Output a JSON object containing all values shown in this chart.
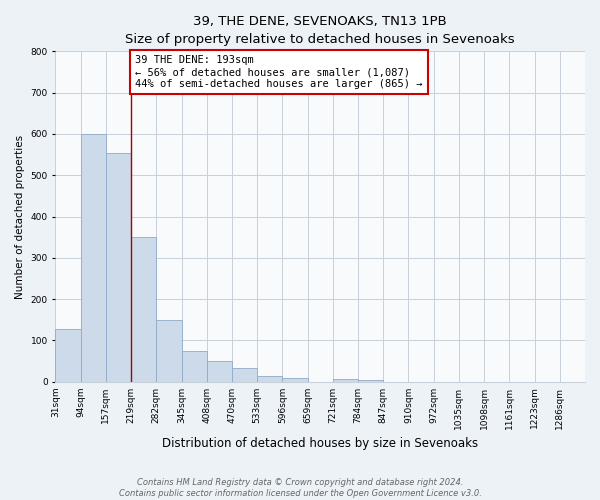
{
  "title": "39, THE DENE, SEVENOAKS, TN13 1PB",
  "subtitle": "Size of property relative to detached houses in Sevenoaks",
  "xlabel": "Distribution of detached houses by size in Sevenoaks",
  "ylabel": "Number of detached properties",
  "bar_labels": [
    "31sqm",
    "94sqm",
    "157sqm",
    "219sqm",
    "282sqm",
    "345sqm",
    "408sqm",
    "470sqm",
    "533sqm",
    "596sqm",
    "659sqm",
    "721sqm",
    "784sqm",
    "847sqm",
    "910sqm",
    "972sqm",
    "1035sqm",
    "1098sqm",
    "1161sqm",
    "1223sqm",
    "1286sqm"
  ],
  "bar_values": [
    128,
    600,
    555,
    350,
    150,
    75,
    50,
    33,
    13,
    10,
    0,
    7,
    5,
    0,
    0,
    0,
    0,
    0,
    0,
    0,
    0
  ],
  "bar_color": "#cddaea",
  "bar_edgecolor": "#90aac8",
  "ylim": [
    0,
    800
  ],
  "yticks": [
    0,
    100,
    200,
    300,
    400,
    500,
    600,
    700,
    800
  ],
  "property_line_x": 3.0,
  "property_line_color": "#aa0000",
  "annotation_text": "39 THE DENE: 193sqm\n← 56% of detached houses are smaller (1,087)\n44% of semi-detached houses are larger (865) →",
  "annotation_box_edgecolor": "#cc0000",
  "annotation_box_facecolor": "#ffffff",
  "footer_line1": "Contains HM Land Registry data © Crown copyright and database right 2024.",
  "footer_line2": "Contains public sector information licensed under the Open Government Licence v3.0.",
  "background_color": "#edf2f7",
  "plot_bg_color": "#f8fafc",
  "grid_color": "#c8d0da",
  "title_fontsize": 9.5,
  "subtitle_fontsize": 8.5,
  "xlabel_fontsize": 8.5,
  "ylabel_fontsize": 7.5,
  "tick_fontsize": 6.5,
  "annotation_fontsize": 7.5,
  "footer_fontsize": 6.0
}
